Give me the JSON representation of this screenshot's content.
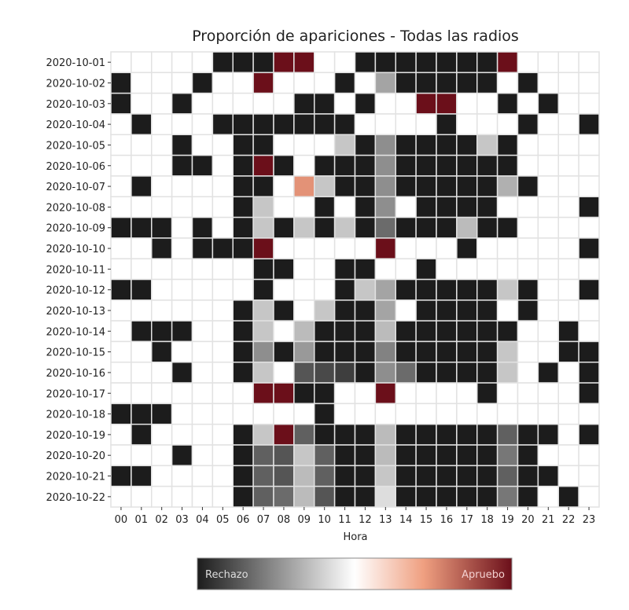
{
  "chart_data": {
    "type": "heatmap",
    "title": "Proporción de apariciones - Todas las radios",
    "xlabel": "Hora",
    "ylabel": "",
    "x_categories": [
      "00",
      "01",
      "02",
      "03",
      "04",
      "05",
      "06",
      "07",
      "08",
      "09",
      "10",
      "11",
      "12",
      "13",
      "14",
      "15",
      "16",
      "17",
      "18",
      "19",
      "20",
      "21",
      "22",
      "23"
    ],
    "y_categories": [
      "2020-10-01",
      "2020-10-02",
      "2020-10-03",
      "2020-10-04",
      "2020-10-05",
      "2020-10-06",
      "2020-10-07",
      "2020-10-08",
      "2020-10-09",
      "2020-10-10",
      "2020-10-11",
      "2020-10-12",
      "2020-10-13",
      "2020-10-14",
      "2020-10-15",
      "2020-10-16",
      "2020-10-17",
      "2020-10-18",
      "2020-10-19",
      "2020-10-20",
      "2020-10-21",
      "2020-10-22"
    ],
    "value_range": [
      -1,
      1
    ],
    "colorbar": {
      "low_label": "Rechazo",
      "high_label": "Apruebo",
      "low_color": "#1c1c1c",
      "mid_color": "#ffffff",
      "high_color": "#6b0f1a"
    },
    "values": [
      [
        0,
        0,
        0,
        0,
        0,
        -1,
        -1,
        -1,
        1,
        1,
        0,
        0,
        -1,
        -1,
        -1,
        -1,
        -1,
        -1,
        -1,
        1,
        0,
        0,
        0,
        0
      ],
      [
        -1,
        0,
        0,
        0,
        -1,
        0,
        0,
        1,
        0,
        0,
        0,
        -1,
        0,
        -0.4,
        -1,
        -1,
        -1,
        -1,
        -1,
        0,
        -1,
        0,
        0,
        0
      ],
      [
        -1,
        0,
        0,
        -1,
        0,
        0,
        0,
        0,
        0,
        -1,
        -1,
        0,
        -1,
        0,
        0,
        1,
        1,
        0,
        0,
        -1,
        0,
        -1,
        0,
        0
      ],
      [
        0,
        -1,
        0,
        0,
        0,
        -1,
        -1,
        -1,
        -1,
        -1,
        -1,
        -1,
        0,
        0,
        0,
        0,
        -1,
        0,
        0,
        0,
        -1,
        0,
        0,
        -1
      ],
      [
        0,
        0,
        0,
        -1,
        0,
        0,
        -1,
        -1,
        0,
        0,
        0,
        -0.25,
        -1,
        -0.5,
        -1,
        -1,
        -1,
        -1,
        -0.25,
        -1,
        0,
        0,
        0,
        0
      ],
      [
        0,
        0,
        0,
        -1,
        -1,
        0,
        -1,
        1,
        -1,
        0,
        -1,
        -1,
        -1,
        -0.5,
        -1,
        -1,
        -1,
        -1,
        -1,
        -1,
        0,
        0,
        0,
        0
      ],
      [
        0,
        -1,
        0,
        0,
        0,
        0,
        -1,
        -1,
        0,
        0.5,
        -0.25,
        -1,
        -1,
        -0.5,
        -1,
        -1,
        -1,
        -1,
        -1,
        -0.35,
        -1,
        0,
        0,
        0
      ],
      [
        0,
        0,
        0,
        0,
        0,
        0,
        -1,
        -0.25,
        0,
        0,
        -1,
        0,
        -1,
        -0.5,
        0,
        -1,
        -1,
        -1,
        -1,
        0,
        0,
        0,
        0,
        -1
      ],
      [
        -1,
        -1,
        -1,
        0,
        -1,
        0,
        -1,
        -0.25,
        -1,
        -0.25,
        -1,
        -0.25,
        -1,
        -0.65,
        -1,
        -1,
        -1,
        -0.3,
        -1,
        -1,
        0,
        0,
        0,
        0
      ],
      [
        0,
        0,
        -1,
        0,
        -1,
        -1,
        -1,
        1,
        0,
        0,
        0,
        0,
        0,
        1,
        0,
        0,
        0,
        -1,
        0,
        0,
        0,
        0,
        0,
        -1
      ],
      [
        0,
        0,
        0,
        0,
        0,
        0,
        0,
        -1,
        -1,
        0,
        0,
        -1,
        -1,
        0,
        0,
        -1,
        0,
        0,
        0,
        0,
        0,
        0,
        0,
        0
      ],
      [
        -1,
        -1,
        0,
        0,
        0,
        0,
        0,
        -1,
        0,
        0,
        0,
        -1,
        -0.25,
        -0.4,
        -1,
        -1,
        -1,
        -1,
        -1,
        -0.25,
        -1,
        0,
        0,
        -1
      ],
      [
        0,
        0,
        0,
        0,
        0,
        0,
        -1,
        -0.25,
        -1,
        0,
        -0.25,
        -1,
        -1,
        -0.4,
        0,
        -1,
        -1,
        -1,
        -1,
        0,
        -1,
        0,
        0,
        0
      ],
      [
        0,
        -1,
        -1,
        -1,
        0,
        0,
        -1,
        -0.25,
        0,
        -0.3,
        -1,
        -1,
        -1,
        -0.3,
        -1,
        -1,
        -1,
        -1,
        -1,
        -1,
        0,
        0,
        -1,
        0
      ],
      [
        0,
        0,
        -1,
        0,
        0,
        0,
        -1,
        -0.5,
        -1,
        -0.45,
        -1,
        -1,
        -1,
        -0.55,
        -1,
        -1,
        -1,
        -1,
        -1,
        -0.25,
        0,
        0,
        -1,
        -1
      ],
      [
        0,
        0,
        0,
        -1,
        0,
        0,
        -1,
        -0.25,
        0,
        -0.75,
        -0.8,
        -0.85,
        -1,
        -0.5,
        -0.65,
        -1,
        -1,
        -1,
        -1,
        -0.25,
        0,
        -1,
        0,
        -1
      ],
      [
        0,
        0,
        0,
        0,
        0,
        0,
        0,
        1,
        1,
        -1,
        -1,
        0,
        0,
        1,
        0,
        0,
        0,
        0,
        -1,
        0,
        0,
        0,
        0,
        -1
      ],
      [
        -1,
        -1,
        -1,
        0,
        0,
        0,
        0,
        0,
        0,
        0,
        -1,
        0,
        0,
        0,
        0,
        0,
        0,
        0,
        0,
        0,
        0,
        0,
        0,
        0
      ],
      [
        0,
        -1,
        0,
        0,
        0,
        0,
        -1,
        -0.25,
        1,
        -0.7,
        -1,
        -1,
        -1,
        -0.3,
        -1,
        -1,
        -1,
        -1,
        -1,
        -0.7,
        -1,
        -1,
        0,
        -1
      ],
      [
        0,
        0,
        0,
        -1,
        0,
        0,
        -1,
        -0.7,
        -0.75,
        -0.25,
        -0.7,
        -1,
        -1,
        -0.3,
        -1,
        -1,
        -1,
        -1,
        -1,
        -0.6,
        -1,
        0,
        0,
        0
      ],
      [
        -1,
        -1,
        0,
        0,
        0,
        0,
        -1,
        -0.7,
        -0.75,
        -0.3,
        -0.7,
        -1,
        -1,
        -0.25,
        -1,
        -1,
        -1,
        -1,
        -1,
        -0.7,
        -1,
        -1,
        0,
        0
      ],
      [
        0,
        0,
        0,
        0,
        0,
        0,
        -1,
        -0.7,
        -0.65,
        -0.3,
        -0.75,
        -1,
        -1,
        -0.15,
        -1,
        -1,
        -1,
        -1,
        -1,
        -0.6,
        -1,
        0,
        -1,
        0
      ]
    ]
  }
}
